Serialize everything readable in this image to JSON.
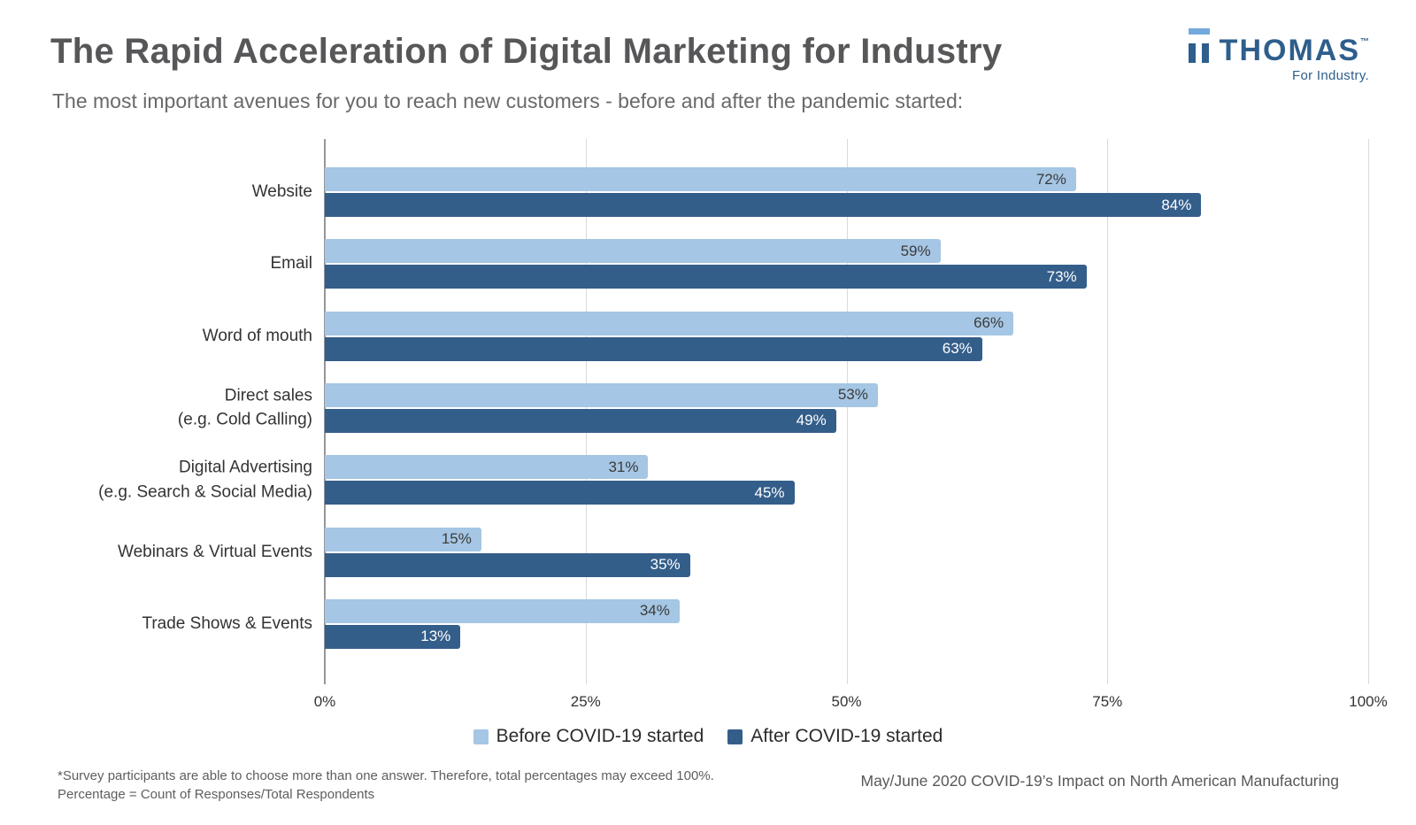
{
  "header": {
    "title": "The Rapid Acceleration of Digital Marketing for Industry",
    "subtitle": "The most important avenues for you to reach new customers - before and after the pandemic started:"
  },
  "logo": {
    "word": "THOMAS",
    "tm": "™",
    "tagline": "For Industry.",
    "navy": "#2E5E8C",
    "light_blue": "#74A9DC"
  },
  "chart_data": {
    "type": "bar",
    "orientation": "horizontal",
    "title": "The Rapid Acceleration of Digital Marketing for Industry",
    "subtitle": "The most important avenues for you to reach new customers - before and after the pandemic started:",
    "categories": [
      "Website",
      "Email",
      "Word of mouth",
      "Direct sales\n(e.g. Cold Calling)",
      "Digital Advertising\n(e.g. Search & Social Media)",
      "Webinars & Virtual Events",
      "Trade Shows & Events"
    ],
    "series": [
      {
        "name": "Before COVID-19 started",
        "color": "#A5C6E4",
        "label_color": "#3B3B3B",
        "values": [
          72,
          59,
          66,
          53,
          31,
          15,
          34
        ]
      },
      {
        "name": "After COVID-19 started",
        "color": "#345E8A",
        "label_color": "#FFFFFF",
        "values": [
          84,
          73,
          63,
          49,
          45,
          35,
          13
        ]
      }
    ],
    "value_suffix": "%",
    "xlim": [
      0,
      100
    ],
    "x_ticks": [
      "0%",
      "25%",
      "50%",
      "75%",
      "100%"
    ],
    "grid": "vertical",
    "gridline_color": "#DADADA",
    "axis_color": "#97979B",
    "legend_position": "bottom"
  },
  "footer": {
    "note_line1": "*Survey participants are able to choose more than one answer. Therefore, total percentages may exceed 100%.",
    "note_line2": "Percentage = Count of Responses/Total Respondents",
    "source": "May/June 2020 COVID-19’s Impact on North American Manufacturing"
  }
}
